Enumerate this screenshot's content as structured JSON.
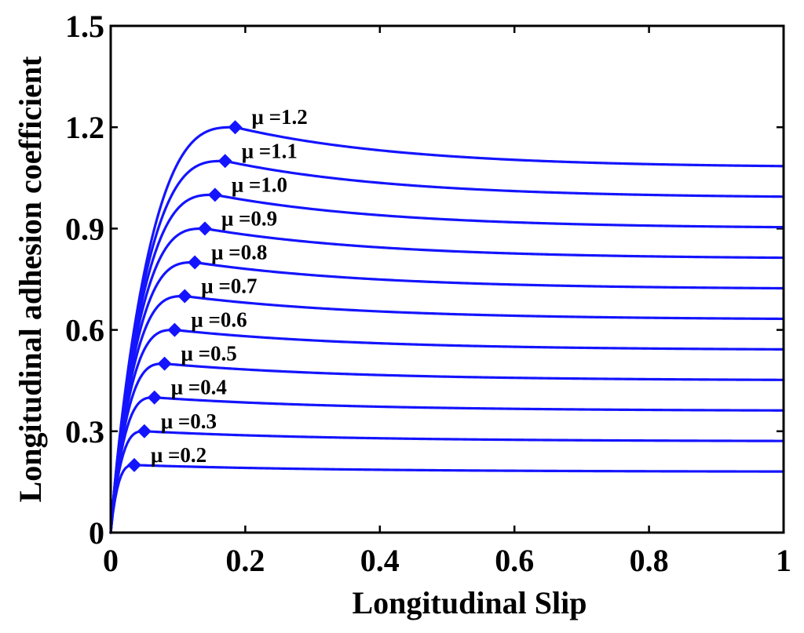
{
  "chart_data": {
    "type": "line",
    "title": "",
    "xlabel": "Longitudinal Slip",
    "ylabel": "Longitudinal adhesion coefficient",
    "xlim": [
      0,
      1
    ],
    "ylim": [
      0,
      1.5
    ],
    "xticks": [
      0,
      0.2,
      0.4,
      0.6,
      0.8,
      1
    ],
    "xtick_labels": [
      "0",
      "0.2",
      "0.4",
      "0.6",
      "0.8",
      "1"
    ],
    "yticks": [
      0,
      0.3,
      0.6,
      0.9,
      1.2,
      1.5
    ],
    "ytick_labels": [
      "0",
      "0.3",
      "0.6",
      "0.9",
      "1.2",
      "1.5"
    ],
    "grid": false,
    "line_color": "#1414ff",
    "marker": "diamond",
    "series": [
      {
        "name": "μ =0.2",
        "label": "μ =0.2",
        "mu": 0.2,
        "peak_x": 0.035,
        "end_value": 0.18
      },
      {
        "name": "μ =0.3",
        "label": "μ =0.3",
        "mu": 0.3,
        "peak_x": 0.05,
        "end_value": 0.27
      },
      {
        "name": "μ =0.4",
        "label": "μ =0.4",
        "mu": 0.4,
        "peak_x": 0.065,
        "end_value": 0.36
      },
      {
        "name": "μ =0.5",
        "label": "μ =0.5",
        "mu": 0.5,
        "peak_x": 0.08,
        "end_value": 0.45
      },
      {
        "name": "μ =0.6",
        "label": "μ =0.6",
        "mu": 0.6,
        "peak_x": 0.095,
        "end_value": 0.54
      },
      {
        "name": "μ =0.7",
        "label": "μ =0.7",
        "mu": 0.7,
        "peak_x": 0.11,
        "end_value": 0.63
      },
      {
        "name": "μ =0.8",
        "label": "μ =0.8",
        "mu": 0.8,
        "peak_x": 0.125,
        "end_value": 0.72
      },
      {
        "name": "μ =0.9",
        "label": "μ =0.9",
        "mu": 0.9,
        "peak_x": 0.14,
        "end_value": 0.81
      },
      {
        "name": "μ =1.0",
        "label": "μ =1.0",
        "mu": 1.0,
        "peak_x": 0.155,
        "end_value": 0.9
      },
      {
        "name": "μ =1.1",
        "label": "μ =1.1",
        "mu": 1.1,
        "peak_x": 0.17,
        "end_value": 0.99
      },
      {
        "name": "μ =1.2",
        "label": "μ =1.2",
        "mu": 1.2,
        "peak_x": 0.185,
        "end_value": 1.08
      }
    ]
  }
}
